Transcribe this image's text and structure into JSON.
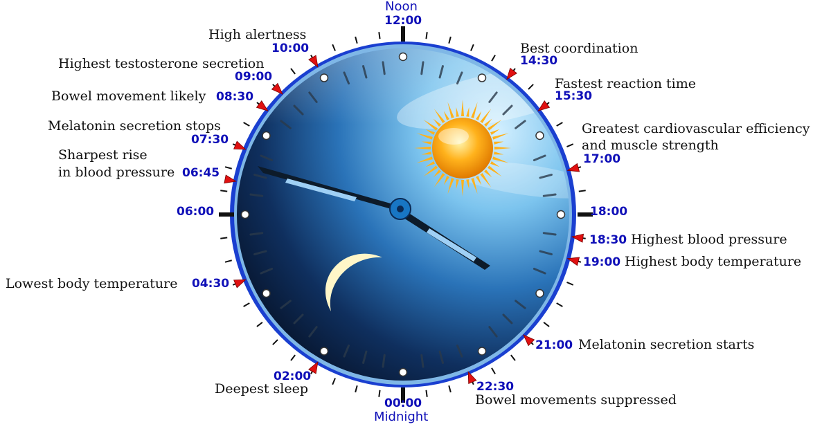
{
  "top_caption": "Noon",
  "bottom_caption": "Midnight",
  "hours": {
    "noon": "12:00",
    "six_pm": "18:00",
    "midnight": "00:00",
    "six_am": "06:00"
  },
  "events": [
    {
      "id": "high-alertness",
      "time": "10:00",
      "text": "High alertness"
    },
    {
      "id": "highest-testosterone",
      "time": "09:00",
      "text": "Highest testosterone secretion"
    },
    {
      "id": "bowel-movement-likely",
      "time": "08:30",
      "text": "Bowel movement likely"
    },
    {
      "id": "melatonin-stops",
      "time": "07:30",
      "text": "Melatonin secretion stops"
    },
    {
      "id": "sharpest-rise-bp",
      "time": "06:45",
      "text_lines": [
        "Sharpest rise",
        "in blood pressure"
      ]
    },
    {
      "id": "lowest-body-temp",
      "time": "04:30",
      "text": "Lowest body temperature"
    },
    {
      "id": "deepest-sleep",
      "time": "02:00",
      "text": "Deepest sleep"
    },
    {
      "id": "bowel-suppressed",
      "time": "22:30",
      "text": "Bowel movements suppressed"
    },
    {
      "id": "melatonin-starts",
      "time": "21:00",
      "text": "Melatonin secretion starts"
    },
    {
      "id": "highest-body-temp",
      "time": "19:00",
      "text": "Highest body temperature"
    },
    {
      "id": "highest-bp",
      "time": "18:30",
      "text": "Highest blood pressure"
    },
    {
      "id": "cardio-efficiency",
      "time": "17:00",
      "text_lines": [
        "Greatest cardiovascular efficiency",
        "and muscle strength"
      ]
    },
    {
      "id": "fastest-reaction",
      "time": "15:30",
      "text": "Fastest reaction time"
    },
    {
      "id": "best-coordination",
      "time": "14:30",
      "text": "Best coordination"
    }
  ],
  "colors": {
    "time_text": "#1010b8",
    "marker": "#e01010",
    "clock_rim": "#1a3fd0",
    "sky_light": "#bfe6fb",
    "sky_dark": "#0a1a33"
  },
  "icons": {
    "sun": "sun-icon",
    "moon": "crescent-moon-icon",
    "marker": "red-triangle-marker"
  }
}
